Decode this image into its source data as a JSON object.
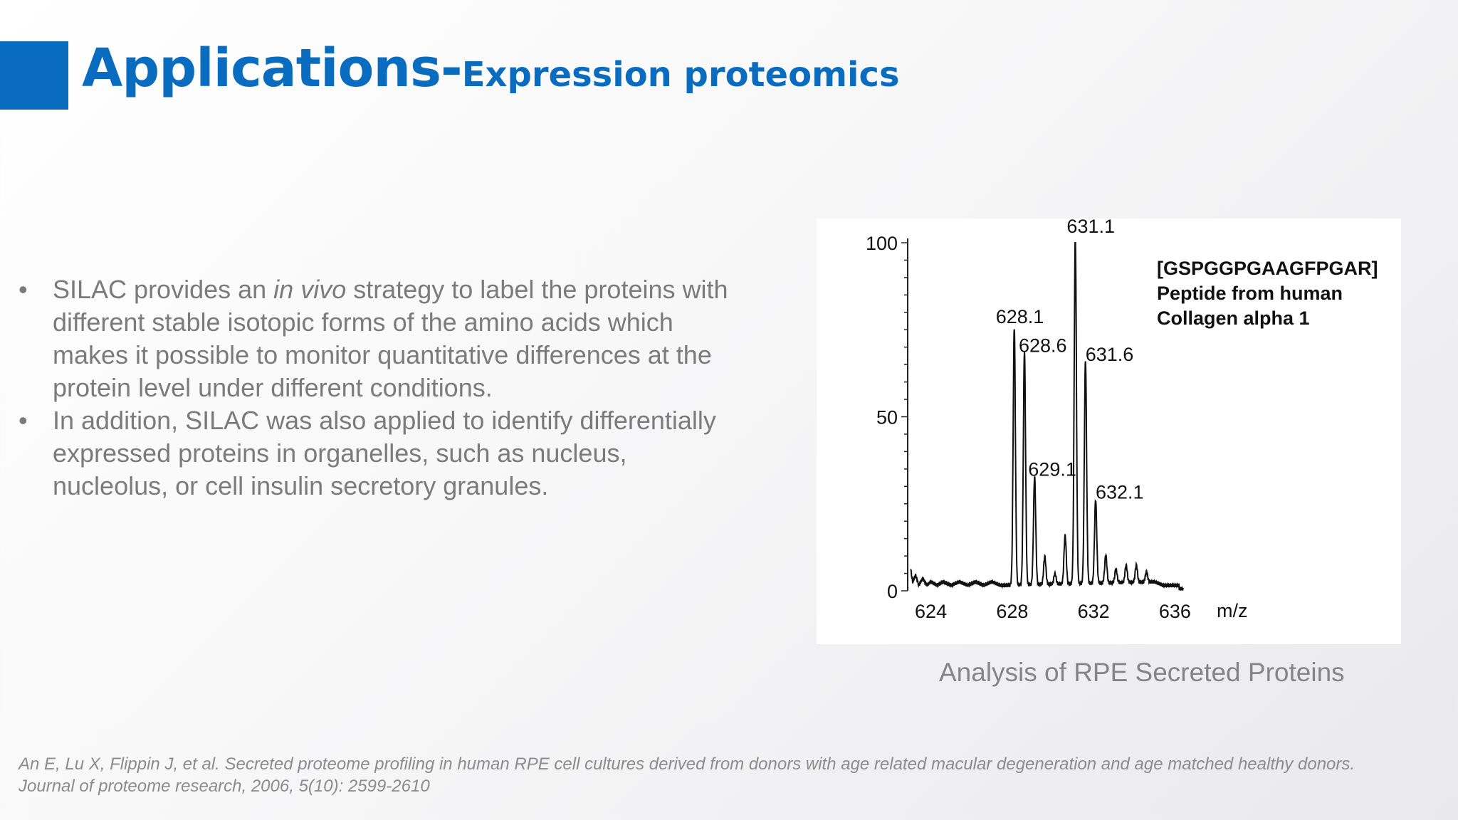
{
  "slide": {
    "title_main": "Applications-",
    "title_sub": "Expression proteomics",
    "bullets": [
      {
        "before": "SILAC provides an ",
        "italic": "in vivo",
        "after": " strategy to label the proteins with different stable isotopic forms of the amino acids which makes it possible to monitor quantitative differences at the protein level under different conditions."
      },
      {
        "before": "In addition, SILAC was also applied to identify differentially expressed proteins in organelles, such as nucleus, nucleolus, or cell insulin secretory granules.",
        "italic": "",
        "after": ""
      }
    ],
    "bullet_glyph": "•",
    "caption": "Analysis of RPE Secreted Proteins",
    "reference": "An E, Lu X, Flippin J, et al. Secreted proteome profiling in human RPE cell cultures derived from donors with age related macular degeneration and age matched healthy donors. Journal of proteome research, 2006, 5(10): 2599-2610",
    "colors": {
      "accent": "#0a6cbf",
      "body_text": "#7b7b7b"
    }
  },
  "chart_data": {
    "type": "line",
    "xlabel": "m/z",
    "ylabel": "",
    "xlim": [
      623,
      637
    ],
    "ylim": [
      0,
      100
    ],
    "x_ticks": [
      624,
      628,
      632,
      636
    ],
    "y_ticks": [
      0,
      50,
      100
    ],
    "annotation": [
      "[GSPGGPGAAGFPGAR]",
      "Peptide from human",
      "Collagen alpha 1"
    ],
    "peaks": [
      {
        "x": 628.1,
        "y": 74,
        "label": "628.1"
      },
      {
        "x": 628.6,
        "y": 67,
        "label": "628.6"
      },
      {
        "x": 629.1,
        "y": 31,
        "label": "629.1"
      },
      {
        "x": 629.6,
        "y": 8,
        "label": ""
      },
      {
        "x": 630.1,
        "y": 3,
        "label": ""
      },
      {
        "x": 630.6,
        "y": 14,
        "label": ""
      },
      {
        "x": 631.1,
        "y": 100,
        "label": "631.1"
      },
      {
        "x": 631.6,
        "y": 64,
        "label": "631.6"
      },
      {
        "x": 632.1,
        "y": 24,
        "label": "632.1"
      },
      {
        "x": 632.6,
        "y": 8,
        "label": ""
      },
      {
        "x": 633.1,
        "y": 4,
        "label": ""
      },
      {
        "x": 633.6,
        "y": 5,
        "label": ""
      },
      {
        "x": 634.1,
        "y": 5,
        "label": ""
      },
      {
        "x": 634.6,
        "y": 3,
        "label": ""
      }
    ],
    "baseline_noise": [
      {
        "x": 623.0,
        "y": 6
      },
      {
        "x": 623.1,
        "y": 2
      },
      {
        "x": 623.25,
        "y": 4
      },
      {
        "x": 623.4,
        "y": 1
      },
      {
        "x": 623.6,
        "y": 3
      },
      {
        "x": 623.8,
        "y": 1
      },
      {
        "x": 624.0,
        "y": 2
      },
      {
        "x": 624.3,
        "y": 1
      },
      {
        "x": 624.6,
        "y": 2
      },
      {
        "x": 625.0,
        "y": 1
      },
      {
        "x": 625.4,
        "y": 2
      },
      {
        "x": 625.8,
        "y": 1
      },
      {
        "x": 626.2,
        "y": 2
      },
      {
        "x": 626.6,
        "y": 1
      },
      {
        "x": 627.0,
        "y": 2
      },
      {
        "x": 627.4,
        "y": 1
      },
      {
        "x": 635.0,
        "y": 2
      },
      {
        "x": 635.4,
        "y": 1
      },
      {
        "x": 635.8,
        "y": 1
      },
      {
        "x": 636.2,
        "y": 1
      }
    ]
  }
}
